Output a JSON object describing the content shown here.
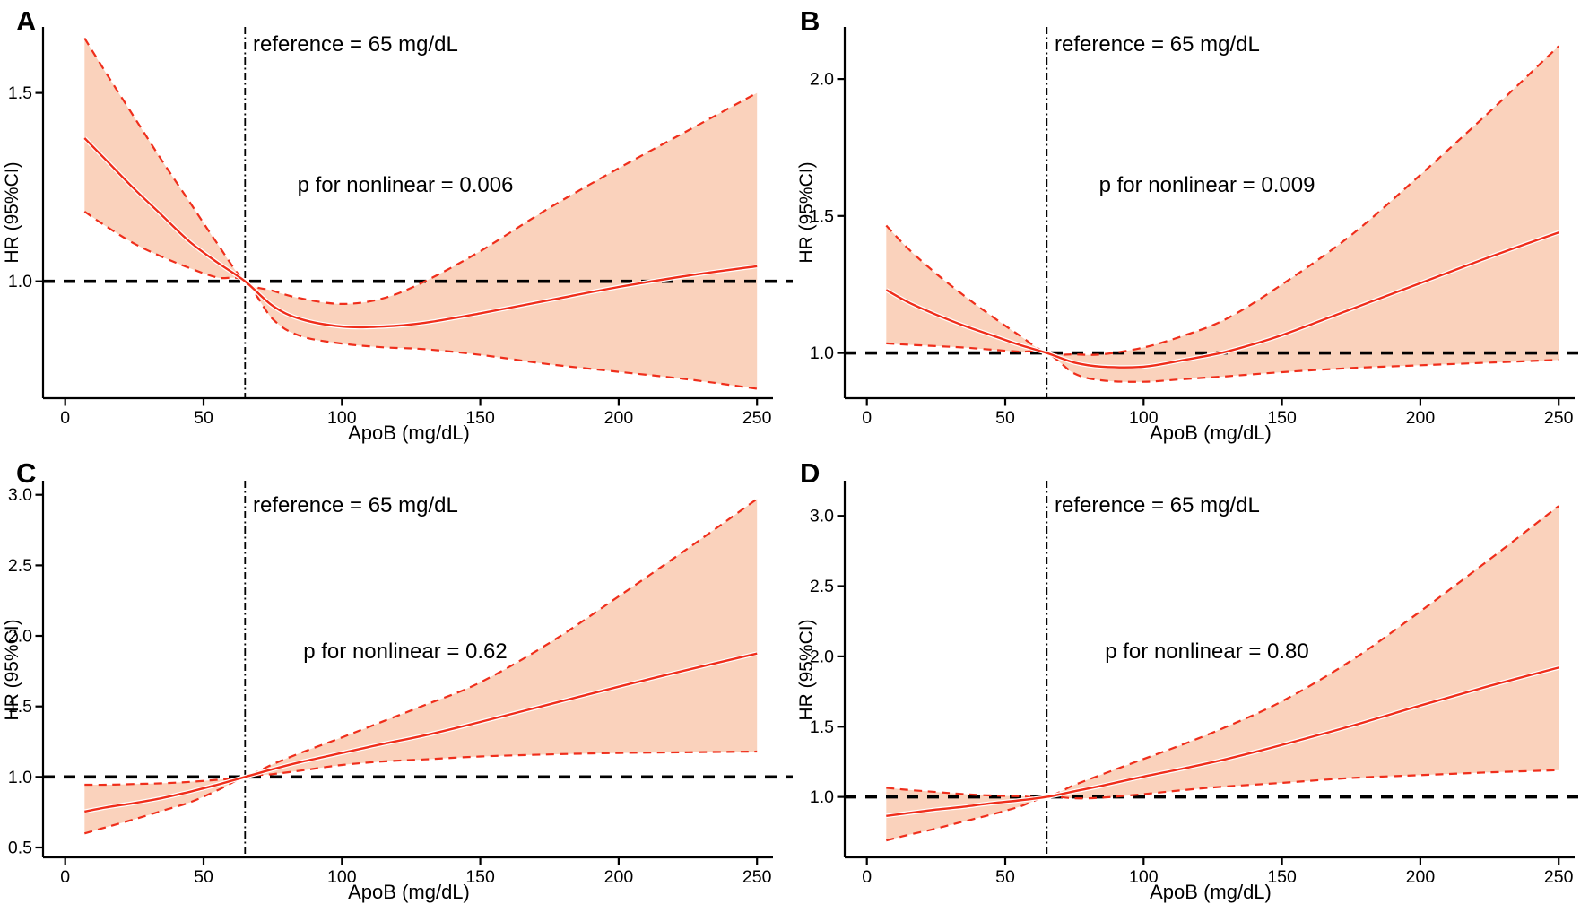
{
  "figure": {
    "background": "#ffffff",
    "colors": {
      "curve": "#EF2E1B",
      "ci_line": "#EF2E1B",
      "ribbon_fill": "#FAD2BC",
      "reference_lines": "#000000",
      "axis": "#000000",
      "text": "#000000",
      "curve_halo": "#FFFFFF"
    }
  },
  "chart_data": [
    {
      "panel": "A",
      "type": "line",
      "xlabel": "ApoB (mg/dL)",
      "ylabel": "HR (95%CI)",
      "annotations": {
        "reference": "reference = 65 mg/dL",
        "p_nonlinear": "p for nonlinear = 0.006"
      },
      "reference_x_mg_dl": 65,
      "reference_hr": 1.0,
      "xlim": [
        -8,
        256
      ],
      "ylim": [
        0.69,
        1.675
      ],
      "xticks": [
        0,
        50,
        100,
        150,
        200,
        250
      ],
      "yticks": [
        "1.0",
        "1.5"
      ],
      "x": [
        7,
        15,
        25,
        35,
        45,
        55,
        65,
        75,
        85,
        100,
        115,
        130,
        150,
        175,
        200,
        225,
        250
      ],
      "series": [
        {
          "name": "HR",
          "style": "solid",
          "values": [
            1.38,
            1.32,
            1.245,
            1.175,
            1.105,
            1.05,
            1.0,
            0.935,
            0.9,
            0.88,
            0.88,
            0.89,
            0.915,
            0.95,
            0.985,
            1.015,
            1.04
          ]
        },
        {
          "name": "95%CI upper",
          "style": "dashed",
          "values": [
            1.645,
            1.55,
            1.435,
            1.32,
            1.21,
            1.1,
            1.0,
            0.975,
            0.955,
            0.94,
            0.955,
            1.0,
            1.08,
            1.195,
            1.3,
            1.4,
            1.5
          ]
        },
        {
          "name": "95%CI lower",
          "style": "dashed",
          "values": [
            1.185,
            1.145,
            1.1,
            1.065,
            1.035,
            1.01,
            1.0,
            0.9,
            0.855,
            0.835,
            0.825,
            0.82,
            0.805,
            0.78,
            0.76,
            0.74,
            0.715
          ]
        }
      ]
    },
    {
      "panel": "B",
      "type": "line",
      "xlabel": "ApoB (mg/dL)",
      "ylabel": "HR (95%CI)",
      "annotations": {
        "reference": "reference = 65 mg/dL",
        "p_nonlinear": "p for nonlinear = 0.009"
      },
      "reference_x_mg_dl": 65,
      "reference_hr": 1.0,
      "xlim": [
        -8,
        256
      ],
      "ylim": [
        0.835,
        2.19
      ],
      "xticks": [
        0,
        50,
        100,
        150,
        200,
        250
      ],
      "yticks": [
        "1.0",
        "1.5",
        "2.0"
      ],
      "x": [
        7,
        15,
        25,
        35,
        45,
        55,
        65,
        75,
        85,
        100,
        115,
        130,
        150,
        175,
        200,
        225,
        250
      ],
      "series": [
        {
          "name": "HR",
          "style": "solid",
          "values": [
            1.23,
            1.185,
            1.14,
            1.1,
            1.065,
            1.03,
            1.0,
            0.965,
            0.95,
            0.95,
            0.975,
            1.005,
            1.065,
            1.16,
            1.255,
            1.35,
            1.44
          ]
        },
        {
          "name": "95%CI upper",
          "style": "dashed",
          "values": [
            1.465,
            1.38,
            1.29,
            1.21,
            1.135,
            1.065,
            1.0,
            0.995,
            0.995,
            1.02,
            1.065,
            1.125,
            1.25,
            1.43,
            1.65,
            1.88,
            2.12
          ]
        },
        {
          "name": "95%CI lower",
          "style": "dashed",
          "values": [
            1.035,
            1.03,
            1.025,
            1.02,
            1.012,
            1.005,
            1.0,
            0.925,
            0.9,
            0.895,
            0.905,
            0.915,
            0.93,
            0.945,
            0.955,
            0.965,
            0.975
          ]
        }
      ]
    },
    {
      "panel": "C",
      "type": "line",
      "xlabel": "ApoB (mg/dL)",
      "ylabel": "HR (95%CI)",
      "annotations": {
        "reference": "reference = 65 mg/dL",
        "p_nonlinear": "p for nonlinear = 0.62"
      },
      "reference_x_mg_dl": 65,
      "reference_hr": 1.0,
      "xlim": [
        -8,
        256
      ],
      "ylim": [
        0.43,
        3.1
      ],
      "xticks": [
        0,
        50,
        100,
        150,
        200,
        250
      ],
      "yticks": [
        "0.5",
        "1.0",
        "1.5",
        "2.0",
        "2.5",
        "3.0"
      ],
      "x": [
        7,
        15,
        25,
        35,
        45,
        55,
        65,
        75,
        85,
        100,
        115,
        130,
        150,
        175,
        200,
        225,
        250
      ],
      "series": [
        {
          "name": "HR",
          "style": "solid",
          "values": [
            0.755,
            0.785,
            0.815,
            0.85,
            0.895,
            0.945,
            1.0,
            1.055,
            1.105,
            1.17,
            1.235,
            1.295,
            1.39,
            1.515,
            1.64,
            1.76,
            1.875
          ]
        },
        {
          "name": "95%CI upper",
          "style": "dashed",
          "values": [
            0.945,
            0.945,
            0.95,
            0.955,
            0.965,
            0.98,
            1.0,
            1.09,
            1.17,
            1.28,
            1.395,
            1.51,
            1.67,
            1.95,
            2.28,
            2.62,
            2.97
          ]
        },
        {
          "name": "95%CI lower",
          "style": "dashed",
          "values": [
            0.6,
            0.645,
            0.7,
            0.76,
            0.82,
            0.905,
            1.0,
            1.02,
            1.045,
            1.085,
            1.11,
            1.125,
            1.145,
            1.16,
            1.17,
            1.175,
            1.18
          ]
        }
      ]
    },
    {
      "panel": "D",
      "type": "line",
      "xlabel": "ApoB (mg/dL)",
      "ylabel": "HR (95%CI)",
      "annotations": {
        "reference": "reference = 65 mg/dL",
        "p_nonlinear": "p for nonlinear = 0.80"
      },
      "reference_x_mg_dl": 65,
      "reference_hr": 1.0,
      "xlim": [
        -8,
        256
      ],
      "ylim": [
        0.57,
        3.25
      ],
      "xticks": [
        0,
        50,
        100,
        150,
        200,
        250
      ],
      "yticks": [
        "1.0",
        "1.5",
        "2.0",
        "2.5",
        "3.0"
      ],
      "x": [
        7,
        15,
        25,
        35,
        45,
        55,
        65,
        75,
        85,
        100,
        115,
        130,
        150,
        175,
        200,
        225,
        250
      ],
      "series": [
        {
          "name": "HR",
          "style": "solid",
          "values": [
            0.865,
            0.885,
            0.91,
            0.93,
            0.955,
            0.975,
            1.0,
            1.04,
            1.08,
            1.145,
            1.205,
            1.27,
            1.37,
            1.505,
            1.65,
            1.79,
            1.92
          ]
        },
        {
          "name": "95%CI upper",
          "style": "dashed",
          "values": [
            1.065,
            1.05,
            1.035,
            1.02,
            1.01,
            1.005,
            1.0,
            1.085,
            1.16,
            1.27,
            1.38,
            1.5,
            1.68,
            1.97,
            2.32,
            2.69,
            3.07
          ]
        },
        {
          "name": "95%CI lower",
          "style": "dashed",
          "values": [
            0.69,
            0.73,
            0.775,
            0.825,
            0.875,
            0.93,
            1.0,
            0.99,
            0.995,
            1.02,
            1.05,
            1.075,
            1.1,
            1.135,
            1.155,
            1.175,
            1.19
          ]
        }
      ]
    }
  ]
}
